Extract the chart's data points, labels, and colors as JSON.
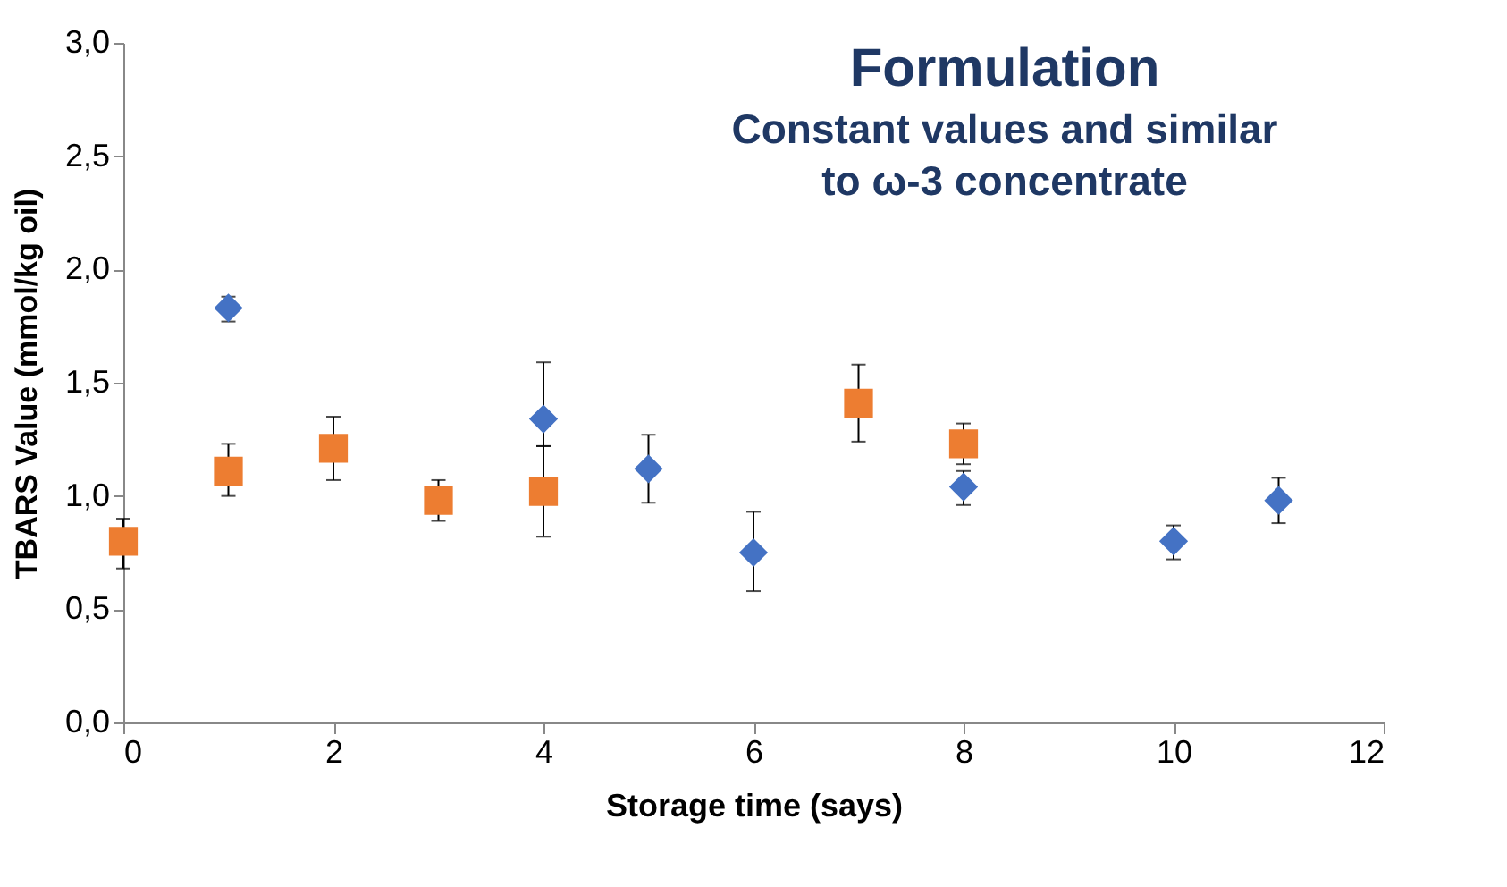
{
  "chart_data": {
    "type": "scatter",
    "xlabel": "Storage time (says)",
    "ylabel": "TBARS Value (mmol/kg oil)",
    "xlim": [
      0,
      12
    ],
    "xticks": [
      0,
      2,
      4,
      6,
      8,
      10,
      12
    ],
    "ylim": [
      0,
      3
    ],
    "yticks": [
      {
        "value": 0,
        "label": "0,0"
      },
      {
        "value": 0.5,
        "label": "0,5"
      },
      {
        "value": 1,
        "label": "1,0"
      },
      {
        "value": 1.5,
        "label": "1,5"
      },
      {
        "value": 2,
        "label": "2,0"
      },
      {
        "value": 2.5,
        "label": "2,5"
      },
      {
        "value": 3,
        "label": "3,0"
      }
    ],
    "grid": false,
    "annotations": [
      "Formulation",
      "Constant values and similar to ω-3 concentrate"
    ],
    "series": [
      {
        "color": "#4472c4",
        "marker": "diamond",
        "x": [
          1,
          4,
          5,
          6,
          8,
          10,
          11
        ],
        "values": [
          1.83,
          1.34,
          1.12,
          0.75,
          1.04,
          0.8,
          0.98
        ],
        "errors": [
          [
            1.77,
            1.88
          ],
          [
            1.22,
            1.59
          ],
          [
            0.97,
            1.27
          ],
          [
            0.58,
            0.93
          ],
          [
            0.96,
            1.11
          ],
          [
            0.72,
            0.87
          ],
          [
            0.88,
            1.08
          ]
        ]
      },
      {
        "color": "#ed7d31",
        "marker": "square",
        "x": [
          0,
          1,
          2,
          3,
          4,
          7,
          8
        ],
        "values": [
          0.8,
          1.11,
          1.21,
          0.98,
          1.02,
          1.41,
          1.23
        ],
        "errors": [
          [
            0.68,
            0.9
          ],
          [
            1.0,
            1.23
          ],
          [
            1.07,
            1.35
          ],
          [
            0.89,
            1.07
          ],
          [
            0.82,
            1.22
          ],
          [
            1.24,
            1.58
          ],
          [
            1.14,
            1.32
          ]
        ]
      }
    ]
  }
}
